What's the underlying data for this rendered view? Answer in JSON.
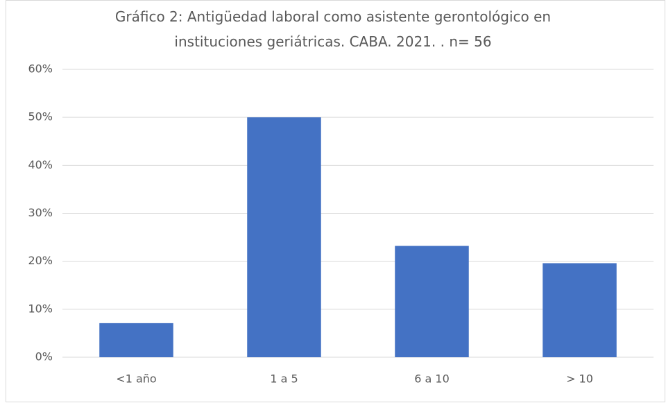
{
  "chart_data": {
    "type": "bar",
    "title": "Gráfico 2: Antigüedad laboral como asistente gerontológico en instituciones geriátricas. CABA. 2021. . n= 56",
    "categories": [
      "<1 año",
      "1 a 5",
      "6 a 10",
      "> 10"
    ],
    "values": [
      7.1,
      50,
      23.2,
      19.6
    ],
    "color": "#4472c4",
    "ylim": [
      0,
      60
    ],
    "yticks": [
      {
        "value": 0,
        "label": "0%"
      },
      {
        "value": 10,
        "label": "10%"
      },
      {
        "value": 20,
        "label": "20%"
      },
      {
        "value": 30,
        "label": "30%"
      },
      {
        "value": 40,
        "label": "40%"
      },
      {
        "value": 50,
        "label": "50%"
      },
      {
        "value": 60,
        "label": "60%"
      }
    ],
    "grid": true
  }
}
